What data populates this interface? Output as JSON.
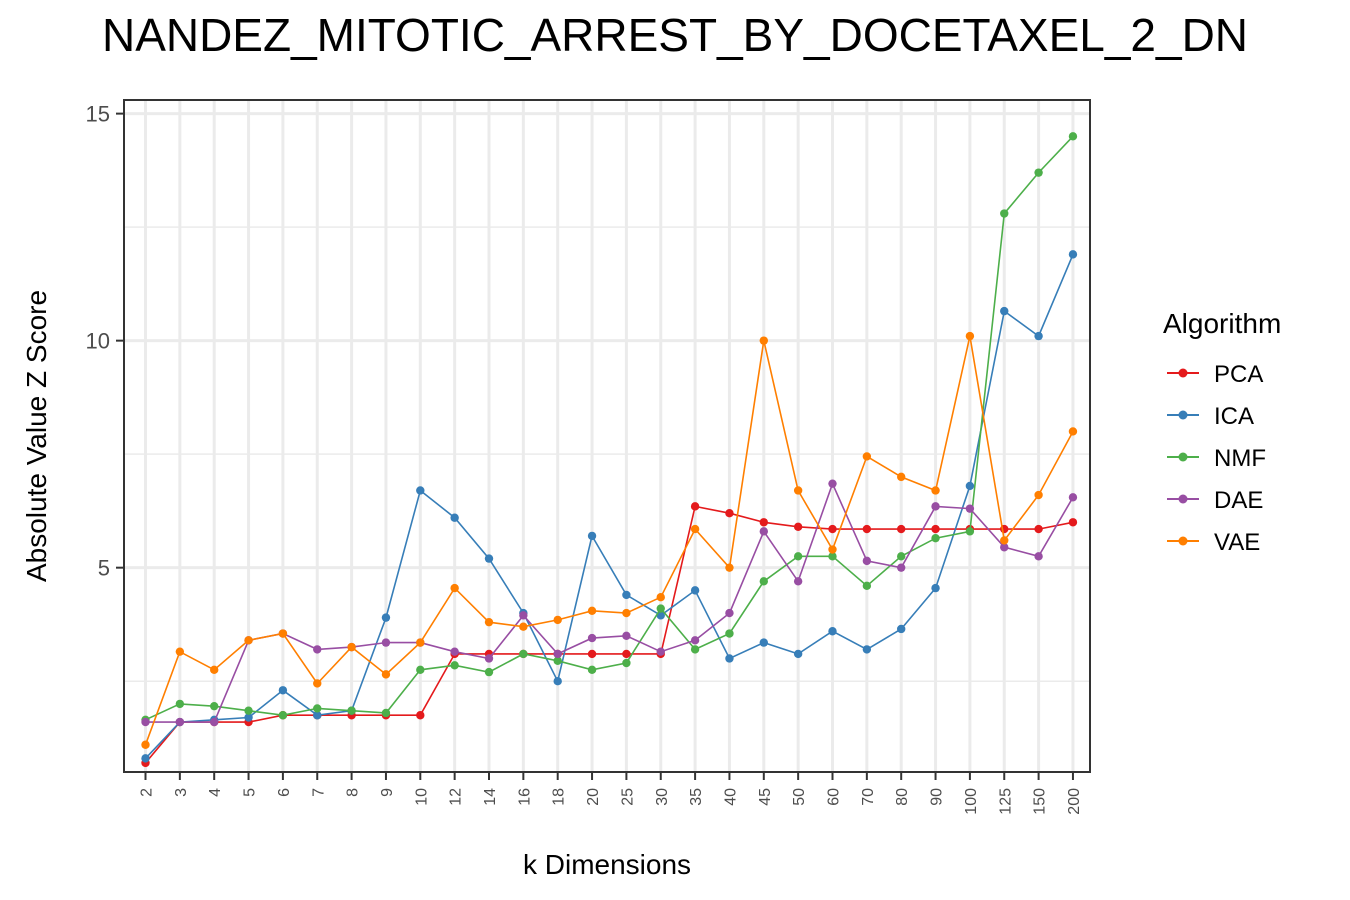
{
  "chart_data": {
    "type": "line",
    "title": "NANDEZ_MITOTIC_ARREST_BY_DOCETAXEL_2_DN",
    "xlabel": "k Dimensions",
    "ylabel": "Absolute Value Z Score",
    "categories": [
      "2",
      "3",
      "4",
      "5",
      "6",
      "7",
      "8",
      "9",
      "10",
      "12",
      "14",
      "16",
      "18",
      "20",
      "25",
      "30",
      "35",
      "40",
      "45",
      "50",
      "60",
      "70",
      "80",
      "90",
      "100",
      "125",
      "150",
      "200"
    ],
    "y_ticks": [
      "5",
      "10",
      "15"
    ],
    "ylim": [
      0.5,
      15.3
    ],
    "grid": true,
    "legend_title": "Algorithm",
    "legend_position": "right",
    "series": [
      {
        "name": "PCA",
        "color": "#e41a1c",
        "values": [
          0.7,
          1.6,
          1.6,
          1.6,
          1.75,
          1.75,
          1.75,
          1.75,
          1.75,
          3.1,
          3.1,
          3.1,
          3.1,
          3.1,
          3.1,
          3.1,
          6.35,
          6.2,
          6.0,
          5.9,
          5.85,
          5.85,
          5.85,
          5.85,
          5.85,
          5.85,
          5.85,
          6.0
        ]
      },
      {
        "name": "ICA",
        "color": "#377eb8",
        "values": [
          0.8,
          1.6,
          1.65,
          1.7,
          2.3,
          1.75,
          1.85,
          3.9,
          6.7,
          6.1,
          5.2,
          4.0,
          2.5,
          5.7,
          4.4,
          3.95,
          4.5,
          3.0,
          3.35,
          3.1,
          3.6,
          3.2,
          3.65,
          4.55,
          6.8,
          10.65,
          10.1,
          11.9
        ]
      },
      {
        "name": "NMF",
        "color": "#4daf4a",
        "values": [
          1.65,
          2.0,
          1.95,
          1.85,
          1.75,
          1.9,
          1.85,
          1.8,
          2.75,
          2.85,
          2.7,
          3.1,
          2.95,
          2.75,
          2.9,
          4.1,
          3.2,
          3.55,
          4.7,
          5.25,
          5.25,
          4.6,
          5.25,
          5.65,
          5.8,
          12.8,
          13.7,
          14.5
        ]
      },
      {
        "name": "DAE",
        "color": "#984ea3",
        "values": [
          1.6,
          1.6,
          1.6,
          3.4,
          3.55,
          3.2,
          3.25,
          3.35,
          3.35,
          3.15,
          3.0,
          3.95,
          3.1,
          3.45,
          3.5,
          3.15,
          3.4,
          4.0,
          5.8,
          4.7,
          6.85,
          5.15,
          5.0,
          6.35,
          6.3,
          5.45,
          5.25,
          6.55
        ]
      },
      {
        "name": "VAE",
        "color": "#ff7f00",
        "values": [
          1.1,
          3.15,
          2.75,
          3.4,
          3.55,
          2.45,
          3.25,
          2.65,
          3.35,
          4.55,
          3.8,
          3.7,
          3.85,
          4.05,
          4.0,
          4.35,
          5.85,
          5.0,
          10.0,
          6.7,
          5.4,
          7.45,
          7.0,
          6.7,
          10.1,
          5.6,
          6.6,
          8.0
        ]
      }
    ]
  }
}
